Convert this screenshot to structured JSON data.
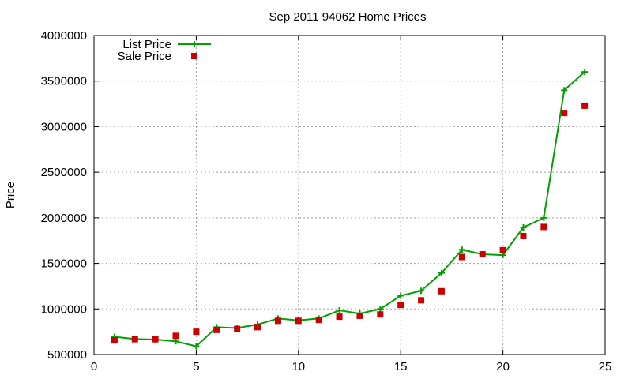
{
  "chart_data": {
    "type": "line",
    "title": "Sep 2011 94062 Home Prices",
    "xlabel": "",
    "ylabel": "Price",
    "xlim": [
      0,
      25
    ],
    "ylim": [
      500000,
      4000000
    ],
    "grid": true,
    "legend_position": "top-left",
    "x_ticks": [
      "0",
      "5",
      "10",
      "15",
      "20",
      "25"
    ],
    "y_ticks": [
      "500000",
      "1000000",
      "1500000",
      "2000000",
      "2500000",
      "3000000",
      "3500000",
      "4000000"
    ],
    "x": [
      1,
      2,
      3,
      4,
      5,
      6,
      7,
      8,
      9,
      10,
      11,
      12,
      13,
      14,
      15,
      16,
      17,
      18,
      19,
      20,
      21,
      22,
      23,
      24
    ],
    "series": [
      {
        "name": "List Price",
        "style": "line+cross",
        "color": "#00a000",
        "values": [
          695000,
          670000,
          665000,
          645000,
          590000,
          800000,
          790000,
          830000,
          895000,
          875000,
          895000,
          985000,
          950000,
          1000000,
          1145000,
          1200000,
          1395000,
          1650000,
          1600000,
          1590000,
          1895000,
          2000000,
          3400000,
          3600000
        ]
      },
      {
        "name": "Sale Price",
        "style": "square",
        "color": "#cc0000",
        "values": [
          655000,
          668000,
          668000,
          705000,
          750000,
          770000,
          780000,
          800000,
          870000,
          870000,
          880000,
          915000,
          925000,
          940000,
          1045000,
          1095000,
          1195000,
          1570000,
          1600000,
          1645000,
          1800000,
          1900000,
          3150000,
          3230000
        ]
      }
    ]
  }
}
